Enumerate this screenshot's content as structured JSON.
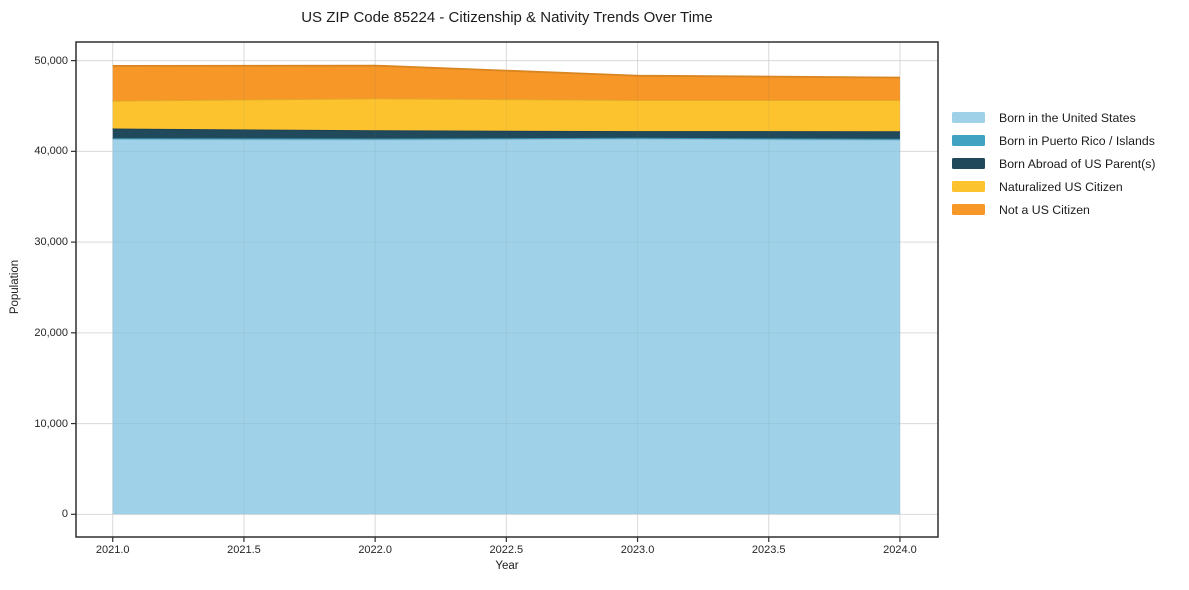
{
  "title": "US ZIP Code 85224 - Citizenship & Nativity Trends Over Time",
  "chart_data": {
    "type": "area",
    "stacked": true,
    "title": "US ZIP Code 85224 - Citizenship & Nativity Trends Over Time",
    "xlabel": "Year",
    "ylabel": "Population",
    "x": [
      2021,
      2022,
      2023,
      2024
    ],
    "series": [
      {
        "name": "Born in the United States",
        "color": "#9FD2E8",
        "values": [
          41350,
          41310,
          41390,
          41280
        ]
      },
      {
        "name": "Born in Puerto Rico / Islands",
        "color": "#41A3C1",
        "values": [
          110,
          110,
          110,
          110
        ]
      },
      {
        "name": "Born Abroad of US Parent(s)",
        "color": "#21495C",
        "values": [
          1060,
          900,
          730,
          830
        ]
      },
      {
        "name": "Naturalized US Citizen",
        "color": "#FDC32F",
        "values": [
          3060,
          3510,
          3420,
          3430
        ]
      },
      {
        "name": "Not a US Citizen",
        "color": "#F79727",
        "values": [
          3840,
          3620,
          2690,
          2480
        ]
      }
    ],
    "totals": [
      49420,
      49450,
      48340,
      48130
    ],
    "xlim": [
      2020.86,
      2024.145
    ],
    "ylim": [
      -2500,
      52050
    ],
    "xticks": [
      2021.0,
      2021.5,
      2022.0,
      2022.5,
      2023.0,
      2023.5,
      2024.0
    ],
    "xtick_labels": [
      "2021.0",
      "2021.5",
      "2022.0",
      "2022.5",
      "2023.0",
      "2023.5",
      "2024.0"
    ],
    "yticks": [
      0,
      10000,
      20000,
      30000,
      40000,
      50000
    ],
    "ytick_labels": [
      "0",
      "10,000",
      "20,000",
      "30,000",
      "40,000",
      "50,000"
    ],
    "grid": true,
    "legend_position": "right-outside",
    "colors": {
      "spine": "#2f2f2f",
      "grid": "#e7e7e7",
      "text": "#1c1c1c",
      "background": "#ffffff"
    }
  },
  "legend": {
    "items": [
      "Born in the United States",
      "Born in Puerto Rico / Islands",
      "Born Abroad of US Parent(s)",
      "Naturalized US Citizen",
      "Not a US Citizen"
    ]
  }
}
